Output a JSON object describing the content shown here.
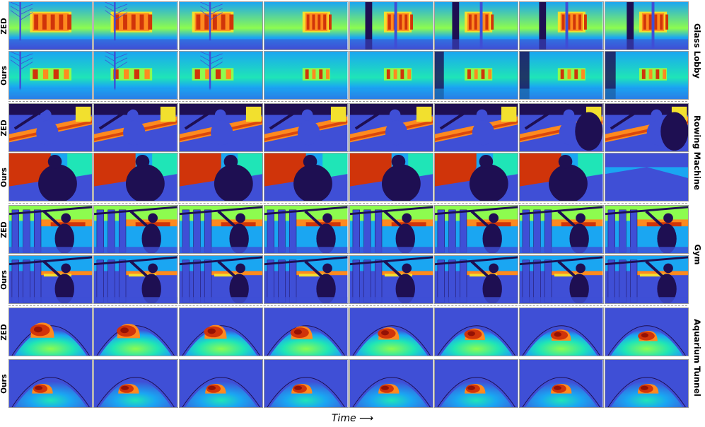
{
  "figure": {
    "time_axis_label": "Time",
    "time_arrow": "⟶",
    "frames_per_row": 8,
    "colormap": [
      "#1e0f52",
      "#3f4fd6",
      "#1aa6f2",
      "#1fe5b7",
      "#8dfc4f",
      "#f2e02e",
      "#fe8a1f",
      "#d0340a",
      "#7a0403"
    ],
    "scenes": [
      {
        "name": "Glass Lobby",
        "scene_type": "lobby",
        "rows": [
          {
            "method": "ZED",
            "pattern": "lobby-zed"
          },
          {
            "method": "Ours",
            "pattern": "lobby-ours"
          }
        ]
      },
      {
        "name": "Rowing Machine",
        "scene_type": "rowing",
        "rows": [
          {
            "method": "ZED",
            "pattern": "rowing-zed"
          },
          {
            "method": "Ours",
            "pattern": "rowing-ours"
          }
        ]
      },
      {
        "name": "Gym",
        "scene_type": "gym",
        "rows": [
          {
            "method": "ZED",
            "pattern": "gym-zed"
          },
          {
            "method": "Ours",
            "pattern": "gym-ours"
          }
        ]
      },
      {
        "name": "Aquarium Tunnel",
        "scene_type": "tunnel",
        "rows": [
          {
            "method": "ZED",
            "pattern": "tunnel-zed"
          },
          {
            "method": "Ours",
            "pattern": "tunnel-ours"
          }
        ]
      }
    ]
  }
}
